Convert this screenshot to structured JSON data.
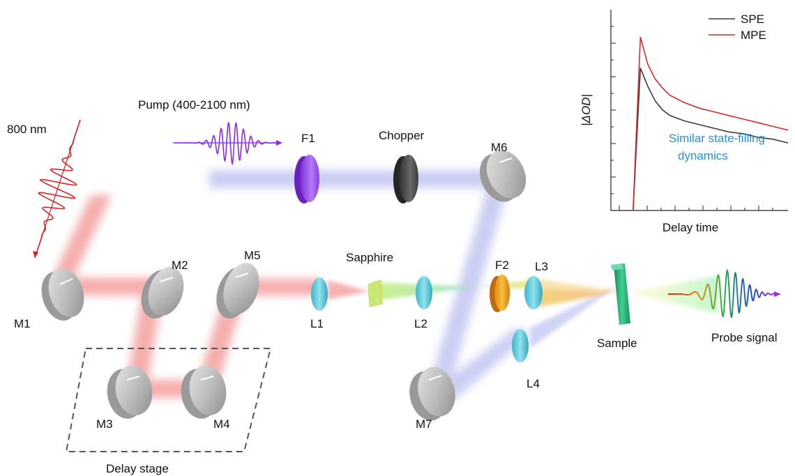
{
  "labels": {
    "source_800": "800 nm",
    "pump": "Pump (400-2100 nm)",
    "F1": "F1",
    "chopper": "Chopper",
    "M1": "M1",
    "M2": "M2",
    "M3": "M3",
    "M4": "M4",
    "M5": "M5",
    "M6": "M6",
    "M7": "M7",
    "L1": "L1",
    "L2": "L2",
    "L3": "L3",
    "L4": "L4",
    "F2": "F2",
    "sapphire": "Sapphire",
    "sample": "Sample",
    "probe": "Probe signal",
    "delay_stage": "Delay stage"
  },
  "colors": {
    "red_beam": "#f4a0a0",
    "blue_beam": "#c6c9f2",
    "mirror": "#b9b9b9",
    "lens": "#5fc9dd",
    "filter_f1": "#9b4fe8",
    "chopper": "#4a4a4a",
    "f2": "#f0a020",
    "sample": "#2aa870",
    "sapphire": "#c9e86a",
    "spe": "#3a3a3a",
    "mpe": "#d62a2a",
    "annotation": "#2a8fd6"
  },
  "chart_data": {
    "type": "line",
    "title": "",
    "xlabel": "Delay time",
    "ylabel": "|ΔOD|",
    "xlim": [
      -0.2,
      1
    ],
    "ylim": [
      0,
      1
    ],
    "grid": false,
    "legend_placement": "top-right",
    "annotation": [
      "Similar state-filling",
      "dynamics"
    ],
    "series": [
      {
        "name": "SPE",
        "x": [
          -0.05,
          0.0,
          0.05,
          0.1,
          0.15,
          0.2,
          0.3,
          0.4,
          0.5,
          0.6,
          0.7,
          0.8,
          0.9,
          1.0
        ],
        "y": [
          0.0,
          0.78,
          0.68,
          0.6,
          0.55,
          0.52,
          0.49,
          0.47,
          0.45,
          0.43,
          0.42,
          0.4,
          0.39,
          0.37
        ]
      },
      {
        "name": "MPE",
        "x": [
          -0.05,
          0.0,
          0.05,
          0.1,
          0.15,
          0.2,
          0.3,
          0.4,
          0.5,
          0.6,
          0.7,
          0.8,
          0.9,
          1.0
        ],
        "y": [
          0.0,
          0.95,
          0.8,
          0.72,
          0.67,
          0.63,
          0.59,
          0.56,
          0.54,
          0.52,
          0.5,
          0.48,
          0.46,
          0.44
        ]
      }
    ]
  }
}
